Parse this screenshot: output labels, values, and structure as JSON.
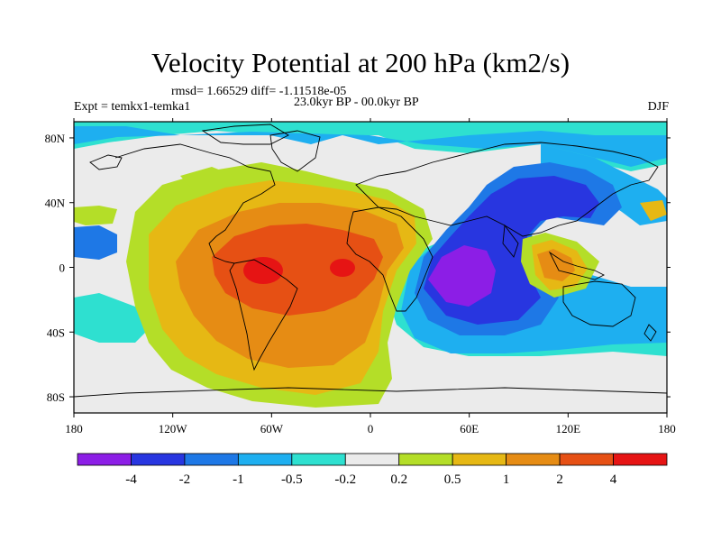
{
  "header": {
    "title": "Velocity Potential at 200 hPa (km2/s)",
    "stats": "rmsd= 1.66529 diff= -1.11518e-05",
    "expt": "Expt = temkx1-temka1",
    "period": "23.0kyr BP - 00.0kyr BP",
    "season": "DJF"
  },
  "map": {
    "projection": "cylindrical equidistant",
    "lon_range": [
      -180,
      180
    ],
    "lat_range": [
      -90,
      90
    ],
    "lon_ticks": [
      "180",
      "120W",
      "60W",
      "0",
      "60E",
      "120E",
      "180"
    ],
    "lat_ticks": [
      "80N",
      "40N",
      "0",
      "40S",
      "80S"
    ]
  },
  "colorbar": {
    "colors": [
      "#8c1ee6",
      "#2836e0",
      "#1e78e6",
      "#1eaff0",
      "#2ee0d0",
      "#ebebeb",
      "#b4de28",
      "#e6b814",
      "#e68c14",
      "#e65014",
      "#e61414"
    ],
    "labels": [
      "-4",
      "-2",
      "-1",
      "-0.5",
      "-0.2",
      "0.2",
      "0.5",
      "1",
      "2",
      "4"
    ]
  }
}
